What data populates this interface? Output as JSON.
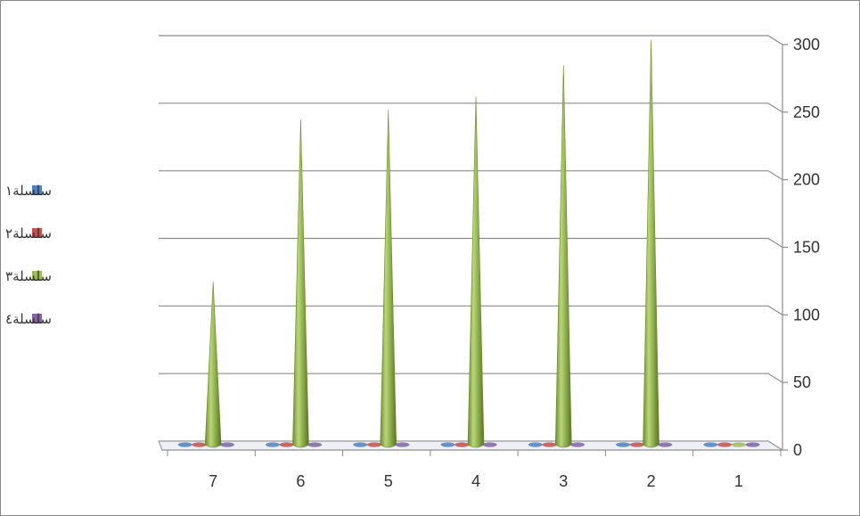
{
  "chart_data": {
    "type": "bar",
    "style": "3d-cone",
    "categories": [
      "7",
      "6",
      "5",
      "4",
      "3",
      "2",
      "1"
    ],
    "series": [
      {
        "name": "سلسلة١",
        "color": "#4f81bd",
        "values": [
          0,
          0,
          0,
          0,
          0,
          0,
          0
        ]
      },
      {
        "name": "سلسلة٢",
        "color": "#c0504d",
        "values": [
          0,
          0,
          0,
          0,
          0,
          0,
          0
        ]
      },
      {
        "name": "سلسلة٣",
        "color": "#9bbb59",
        "values": [
          118,
          238,
          245,
          255,
          278,
          297,
          0
        ]
      },
      {
        "name": "سلسلة٤",
        "color": "#8064a2",
        "values": [
          0,
          0,
          0,
          0,
          0,
          0,
          0
        ]
      }
    ],
    "y_ticks": [
      "0",
      "50",
      "100",
      "150",
      "200",
      "250",
      "300"
    ],
    "ylim": [
      0,
      300
    ],
    "y_axis_side": "right",
    "grid": true,
    "legend_position": "left",
    "title": "",
    "xlabel": "",
    "ylabel": ""
  }
}
